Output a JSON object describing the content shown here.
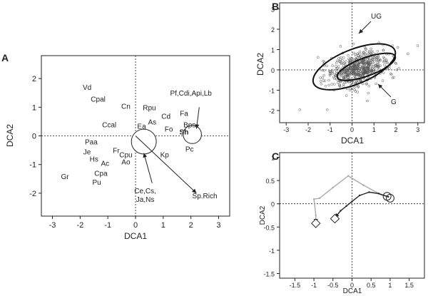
{
  "panels": {
    "a": {
      "label": "A"
    },
    "b": {
      "label": "B"
    },
    "c": {
      "label": "C"
    }
  },
  "chart_data": [
    {
      "type": "scatter",
      "panel": "A",
      "xlabel": "DCA1",
      "ylabel": "DCA2",
      "xlim": [
        -3.4,
        3.4
      ],
      "ylim": [
        -2.8,
        2.8
      ],
      "xticks": [
        -3,
        -2,
        -1,
        0,
        1,
        2,
        3
      ],
      "yticks": [
        -2,
        -1,
        0,
        1,
        2
      ],
      "species": [
        {
          "name": "Vd",
          "x": -1.75,
          "y": 1.7
        },
        {
          "name": "Cpal",
          "x": -1.35,
          "y": 1.3
        },
        {
          "name": "Cn",
          "x": -0.35,
          "y": 1.05
        },
        {
          "name": "Rpu",
          "x": 0.5,
          "y": 1.0
        },
        {
          "name": "As",
          "x": 0.6,
          "y": 0.5
        },
        {
          "name": "Ccal",
          "x": -0.95,
          "y": 0.4
        },
        {
          "name": "Cd",
          "x": 1.1,
          "y": 0.7
        },
        {
          "name": "Fa",
          "x": 1.75,
          "y": 0.8
        },
        {
          "name": "Bps",
          "x": 1.95,
          "y": 0.4
        },
        {
          "name": "Ea",
          "x": 0.22,
          "y": 0.35
        },
        {
          "name": "Fo",
          "x": 1.2,
          "y": 0.25
        },
        {
          "name": "Sh",
          "x": 1.75,
          "y": 0.15
        },
        {
          "name": "Paa",
          "x": -1.6,
          "y": -0.2
        },
        {
          "name": "Fr",
          "x": -0.7,
          "y": -0.5
        },
        {
          "name": "Je",
          "x": -1.75,
          "y": -0.55
        },
        {
          "name": "Cpu",
          "x": -0.35,
          "y": -0.65
        },
        {
          "name": "Hs",
          "x": -1.5,
          "y": -0.8
        },
        {
          "name": "Ac",
          "x": -1.1,
          "y": -0.95
        },
        {
          "name": "Ao",
          "x": -0.35,
          "y": -0.9
        },
        {
          "name": "Kp",
          "x": 1.05,
          "y": -0.65
        },
        {
          "name": "Pc",
          "x": 1.95,
          "y": -0.45
        },
        {
          "name": "Cpa",
          "x": -1.25,
          "y": -1.3
        },
        {
          "name": "Gr",
          "x": -2.55,
          "y": -1.4
        },
        {
          "name": "Pu",
          "x": -1.4,
          "y": -1.6
        }
      ],
      "annotations": [
        {
          "text": "Pf,Cdi,Api,Lb",
          "x": 2.0,
          "y": 1.5
        },
        {
          "text": "Ce,Cs,",
          "x": 0.35,
          "y": -1.9
        },
        {
          "text": "Ja,Ns",
          "x": 0.35,
          "y": -2.2
        },
        {
          "text": "Sp.Rich",
          "x": 2.5,
          "y": -2.08
        }
      ],
      "circles": [
        {
          "x": 0.3,
          "y": -0.2,
          "r": 0.45
        },
        {
          "x": 2.05,
          "y": 0.05,
          "r": 0.33
        }
      ],
      "arrows": [
        {
          "from": [
            0,
            0
          ],
          "to": [
            2.2,
            -2.0
          ]
        },
        {
          "from": [
            0.6,
            -1.65
          ],
          "to": [
            0.3,
            -0.6
          ]
        },
        {
          "from": [
            2.3,
            1.0
          ],
          "to": [
            2.2,
            0.25
          ]
        }
      ]
    },
    {
      "type": "scatter",
      "panel": "B",
      "xlabel": "DCA1",
      "ylabel": "DCA2",
      "xlim": [
        -3.3,
        3.3
      ],
      "ylim": [
        -2.6,
        3.3
      ],
      "xticks": [
        -3,
        -2,
        -1,
        0,
        1,
        2,
        3
      ],
      "yticks": [
        -2,
        -1,
        0,
        1,
        2,
        3
      ],
      "groups": [
        {
          "name": "UG",
          "center": [
            0.1,
            0.15
          ],
          "rx": 2.0,
          "ry": 0.85,
          "angle_deg": 22
        },
        {
          "name": "G",
          "center": [
            0.65,
            0.15
          ],
          "rx": 1.4,
          "ry": 0.45,
          "angle_deg": 20
        }
      ],
      "cloud": {
        "center": [
          0.3,
          0.05
        ],
        "sx": 0.75,
        "sy": 0.4,
        "n": 600
      }
    },
    {
      "type": "line",
      "panel": "C",
      "xlabel": "DCA1",
      "ylabel": "DCA2",
      "xlim": [
        -1.9,
        1.9
      ],
      "ylim": [
        -1.6,
        1.1
      ],
      "xticks": [
        -1.5,
        -1,
        -0.5,
        0,
        0.5,
        1,
        1.5
      ],
      "xtick_labels": [
        "-1.5",
        "-1",
        "-0.5",
        "0",
        "0.5",
        "1",
        "1.5"
      ],
      "yticks": [
        -1.5,
        -1,
        -0.5,
        0,
        0.5,
        1
      ],
      "yticklabels": [
        "-1.5",
        "-1",
        "-0.5",
        "0",
        "0.5",
        "1"
      ],
      "series": [
        {
          "color": "#aaaaaa",
          "points": [
            [
              0.95,
              0.15
            ],
            [
              0.75,
              0.2
            ],
            [
              0.3,
              0.4
            ],
            [
              -0.1,
              0.6
            ],
            [
              -0.5,
              0.35
            ],
            [
              -0.85,
              0.12
            ],
            [
              -1.0,
              0.1
            ],
            [
              -0.95,
              -0.25
            ],
            [
              -0.95,
              -0.42
            ]
          ]
        },
        {
          "color": "#222222",
          "points": [
            [
              0.95,
              0.15
            ],
            [
              0.7,
              0.22
            ],
            [
              0.45,
              0.25
            ],
            [
              0.2,
              0.18
            ],
            [
              0.0,
              0.05
            ],
            [
              -0.15,
              -0.05
            ],
            [
              -0.3,
              -0.15
            ],
            [
              -0.45,
              -0.3
            ]
          ]
        }
      ],
      "markers": [
        {
          "shape": "circle",
          "x": 0.92,
          "y": 0.16
        },
        {
          "shape": "circle",
          "x": 1.0,
          "y": 0.12
        },
        {
          "shape": "diamond",
          "x": -0.95,
          "y": -0.42
        },
        {
          "shape": "diamond",
          "x": -0.45,
          "y": -0.32
        }
      ]
    }
  ]
}
